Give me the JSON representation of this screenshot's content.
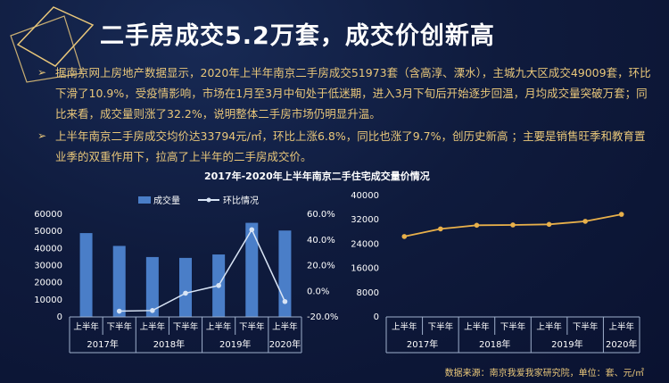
{
  "title": "二手房成交5.2万套，成交价创新高",
  "bullets": [
    "据南京网上房地产数据显示，2020年上半年南京二手房成交51973套（含高淳、溧水），主城九大区成交49009套，环比下滑了10.9%，受疫情影响，市场在1月至3月中旬处于低迷期，进入3月下旬后开始逐步回温，月均成交量突破万套；同比来看，成交量则涨了32.2%，说明整体二手房市场仍明显升温。",
    "上半年南京二手房成交均价达33794元/㎡，环比上涨6.8%，同比也涨了9.7%，创历史新高 ；主要是销售旺季和教育置业季的双重作用下，拉高了上半年的二手房成交价。"
  ],
  "chart_title": "2017年-2020年上半年南京二手住宅成交量价情况",
  "source": "数据来源：南京我爱我家研究院，单位：套、元/㎡",
  "colors": {
    "accent": "#e9c77a",
    "bar": "#4a7ec8",
    "line": "#d8e4f5",
    "price_line": "#e8b04a"
  },
  "chart_data": [
    {
      "type": "bar",
      "categories": [
        "上半年",
        "下半年",
        "上半年",
        "下半年",
        "上半年",
        "下半年",
        "上半年"
      ],
      "year_groups": [
        {
          "label": "2017年",
          "span": 2
        },
        {
          "label": "2018年",
          "span": 2
        },
        {
          "label": "2019年",
          "span": 2
        },
        {
          "label": "2020年",
          "span": 1
        }
      ],
      "series": [
        {
          "name": "成交量",
          "type": "bar",
          "axis": "left",
          "values": [
            49000,
            41500,
            35000,
            34500,
            36500,
            55000,
            50500
          ]
        },
        {
          "name": "环比情况",
          "type": "line",
          "axis": "right",
          "values": [
            null,
            -15.5,
            -15.0,
            -1.5,
            4.5,
            48.0,
            -8.0
          ]
        }
      ],
      "ylim_left": [
        0,
        60000
      ],
      "yticks_left": [
        "0",
        "10000",
        "20000",
        "30000",
        "40000",
        "50000",
        "60000"
      ],
      "ylim_right": [
        -20,
        60
      ],
      "yticks_right": [
        "-20.0%",
        "0.0%",
        "20.0%",
        "40.0%",
        "60.0%"
      ],
      "legend": "top-left"
    },
    {
      "type": "line",
      "categories": [
        "上半年",
        "下半年",
        "上半年",
        "下半年",
        "上半年",
        "下半年",
        "上半年"
      ],
      "year_groups": [
        {
          "label": "2017年",
          "span": 2
        },
        {
          "label": "2018年",
          "span": 2
        },
        {
          "label": "2019年",
          "span": 2
        },
        {
          "label": "2020年",
          "span": 1
        }
      ],
      "series": [
        {
          "values": [
            26500,
            29000,
            30200,
            30300,
            30500,
            31500,
            33794
          ]
        }
      ],
      "ylim": [
        0,
        40000
      ],
      "yticks": [
        "0",
        "8000",
        "16000",
        "24000",
        "32000",
        "40000"
      ]
    }
  ]
}
